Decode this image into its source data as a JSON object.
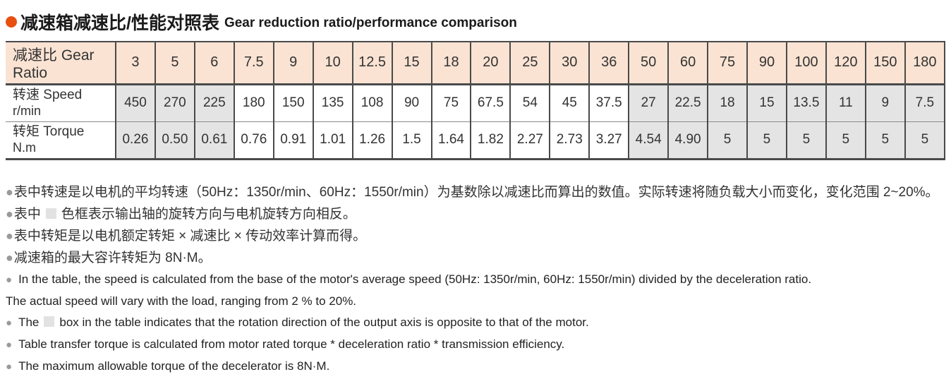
{
  "title": {
    "zh": "减速箱减速比/性能对照表",
    "en": "Gear reduction ratio/performance comparison"
  },
  "colors": {
    "title_bullet": "#e8500f",
    "header_bg": "#fae3d3",
    "shaded_cell_bg": "#e4e4e4",
    "table_border": "#4a4a4a",
    "note_bullet": "#9a9a9a"
  },
  "table": {
    "header_label": "减速比 Gear Ratio",
    "ratios": [
      "3",
      "5",
      "6",
      "7.5",
      "9",
      "10",
      "12.5",
      "15",
      "18",
      "20",
      "25",
      "30",
      "36",
      "50",
      "60",
      "75",
      "90",
      "100",
      "120",
      "150",
      "180"
    ],
    "shaded_columns": [
      0,
      1,
      2,
      13,
      14,
      15,
      16,
      17,
      18,
      19,
      20
    ],
    "rows": [
      {
        "id": "speed",
        "label_line1": "转速 Speed",
        "label_line2": "r/min",
        "values": [
          "450",
          "270",
          "225",
          "180",
          "150",
          "135",
          "108",
          "90",
          "75",
          "67.5",
          "54",
          "45",
          "37.5",
          "27",
          "22.5",
          "18",
          "15",
          "13.5",
          "11",
          "9",
          "7.5"
        ]
      },
      {
        "id": "torque",
        "label_line1": "转矩 Torque",
        "label_line2": "N.m",
        "values": [
          "0.26",
          "0.50",
          "0.61",
          "0.76",
          "0.91",
          "1.01",
          "1.26",
          "1.5",
          "1.64",
          "1.82",
          "2.27",
          "2.73",
          "3.27",
          "4.54",
          "4.90",
          "5",
          "5",
          "5",
          "5",
          "5",
          "5"
        ]
      }
    ]
  },
  "notes": [
    {
      "lang": "zh",
      "bullet": true,
      "parts": [
        {
          "text": "表中转速是以电机的平均转速（50Hz：1350r/min、60Hz：1550r/min）为基数除以减速比而算出的数值。实际转速将随负载大小而变化，变化范围 2~20%。"
        }
      ]
    },
    {
      "lang": "zh",
      "bullet": true,
      "parts": [
        {
          "text": "表中"
        },
        {
          "swatch": true
        },
        {
          "text": "色框表示输出轴的旋转方向与电机旋转方向相反。"
        }
      ]
    },
    {
      "lang": "zh",
      "bullet": true,
      "parts": [
        {
          "text": "表中转矩是以电机额定转矩 × 减速比 × 传动效率计算而得。"
        }
      ]
    },
    {
      "lang": "zh",
      "bullet": true,
      "parts": [
        {
          "text": "减速箱的最大容许转矩为 8N·M。"
        }
      ]
    },
    {
      "lang": "en",
      "bullet": true,
      "parts": [
        {
          "text": "In the table, the speed is calculated from the base of the motor's average speed (50Hz: 1350r/min, 60Hz: 1550r/min) divided by the deceleration ratio."
        }
      ]
    },
    {
      "lang": "en",
      "bullet": false,
      "parts": [
        {
          "text": "The actual speed will vary with the load, ranging from 2 % to 20%."
        }
      ]
    },
    {
      "lang": "en",
      "bullet": true,
      "parts": [
        {
          "text": "The"
        },
        {
          "swatch": true
        },
        {
          "text": "box in the table indicates that the rotation direction of the output axis is opposite to that of the motor."
        }
      ]
    },
    {
      "lang": "en",
      "bullet": true,
      "parts": [
        {
          "text": "Table transfer torque is calculated from motor rated torque * deceleration ratio * transmission efficiency."
        }
      ]
    },
    {
      "lang": "en",
      "bullet": true,
      "parts": [
        {
          "text": "The maximum allowable torque of the decelerator is 8N·M."
        }
      ]
    }
  ]
}
